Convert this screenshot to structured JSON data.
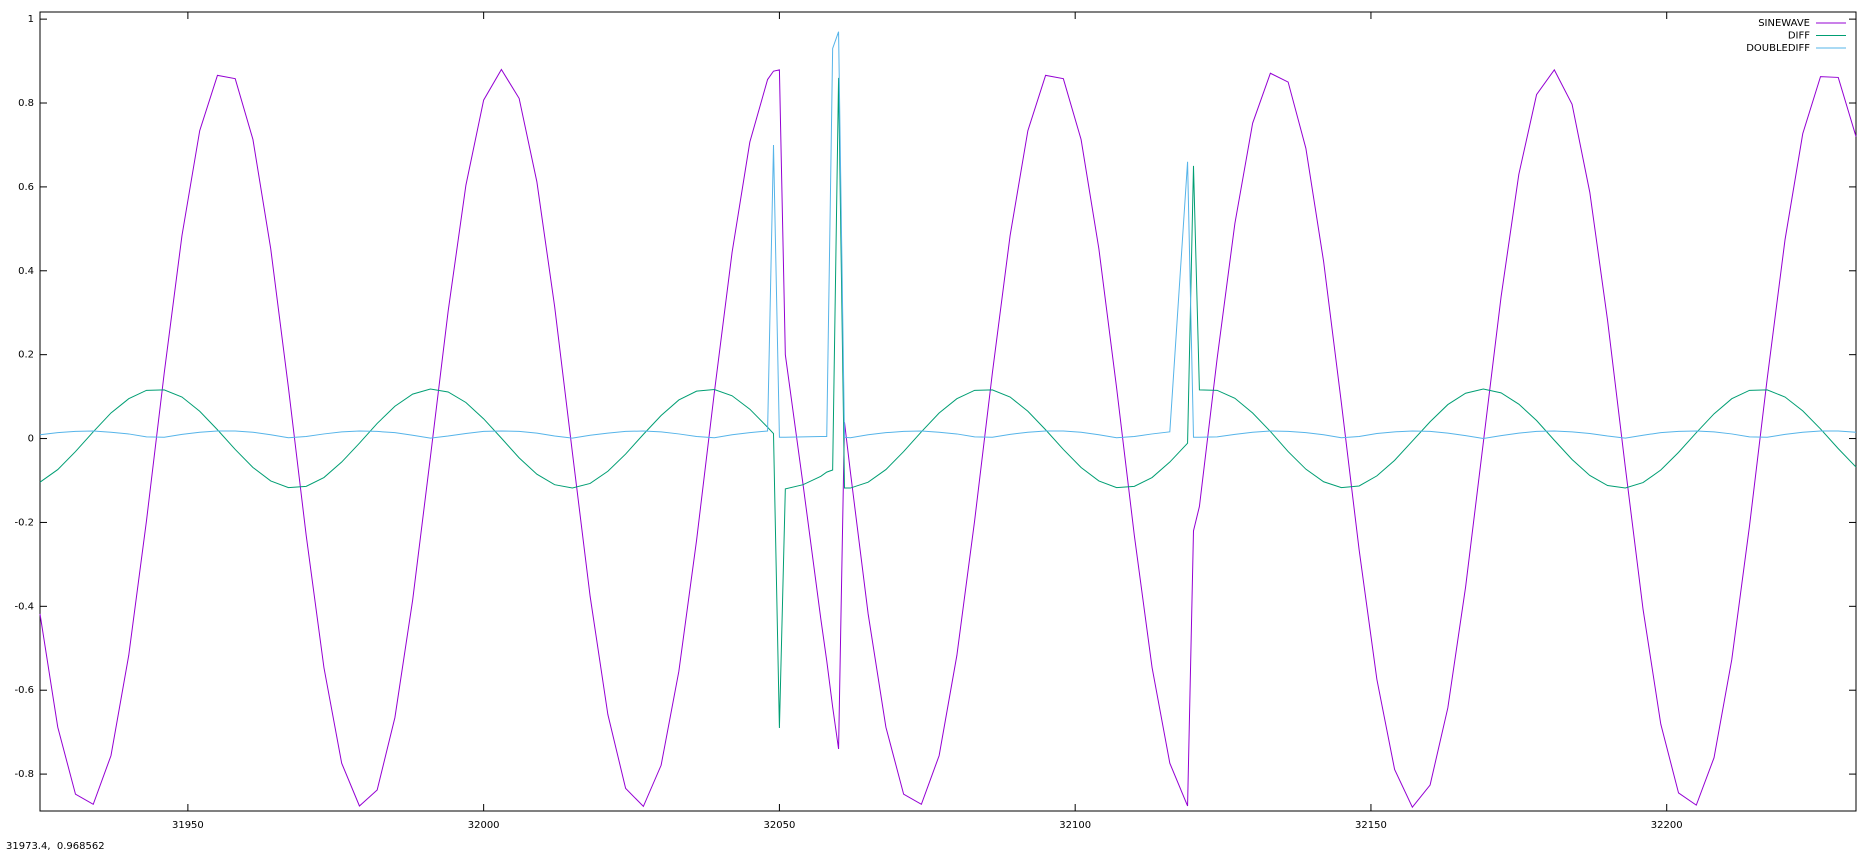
{
  "chart_data": {
    "type": "line",
    "x": [
      31925,
      31928,
      31931,
      31934,
      31937,
      31940,
      31943,
      31946,
      31949,
      31952,
      31955,
      31958,
      31961,
      31964,
      31967,
      31970,
      31973,
      31976,
      31979,
      31982,
      31985,
      31988,
      31991,
      31994,
      31997,
      32000,
      32003,
      32006,
      32009,
      32012,
      32015,
      32018,
      32021,
      32024,
      32027,
      32030,
      32033,
      32036,
      32039,
      32042,
      32045,
      32048,
      32049,
      32050,
      32051,
      32054,
      32057,
      32058,
      32059,
      32060,
      32061,
      32062,
      32065,
      32068,
      32071,
      32074,
      32077,
      32080,
      32083,
      32086,
      32089,
      32092,
      32095,
      32098,
      32101,
      32104,
      32107,
      32110,
      32113,
      32116,
      32119,
      32120,
      32121,
      32124,
      32127,
      32130,
      32133,
      32136,
      32139,
      32142,
      32145,
      32148,
      32151,
      32154,
      32157,
      32160,
      32163,
      32166,
      32169,
      32172,
      32175,
      32178,
      32181,
      32184,
      32187,
      32190,
      32193,
      32196,
      32199,
      32202,
      32205,
      32208,
      32211,
      32214,
      32217,
      32220,
      32223,
      32226,
      32229,
      32232
    ],
    "series": [
      {
        "name": "SINEWAVE",
        "color": "#9400d3",
        "values": [
          -0.418,
          -0.688,
          -0.848,
          -0.872,
          -0.756,
          -0.517,
          -0.196,
          0.156,
          0.484,
          0.734,
          0.866,
          0.858,
          0.713,
          0.453,
          0.121,
          -0.231,
          -0.546,
          -0.774,
          -0.876,
          -0.838,
          -0.665,
          -0.385,
          -0.044,
          0.304,
          0.604,
          0.807,
          0.88,
          0.811,
          0.612,
          0.315,
          -0.033,
          -0.376,
          -0.658,
          -0.834,
          -0.877,
          -0.779,
          -0.555,
          -0.242,
          0.11,
          0.444,
          0.707,
          0.856,
          0.876,
          0.879,
          0.2,
          -0.11,
          -0.43,
          -0.53,
          -0.64,
          -0.74,
          0.039,
          -0.08,
          -0.418,
          -0.688,
          -0.848,
          -0.872,
          -0.756,
          -0.517,
          -0.196,
          0.156,
          0.484,
          0.734,
          0.866,
          0.858,
          0.713,
          0.453,
          0.121,
          -0.231,
          -0.546,
          -0.774,
          -0.876,
          -0.22,
          -0.162,
          0.191,
          0.513,
          0.752,
          0.871,
          0.85,
          0.692,
          0.422,
          0.085,
          -0.265,
          -0.574,
          -0.789,
          -0.879,
          -0.826,
          -0.642,
          -0.354,
          -0.009,
          0.338,
          0.63,
          0.82,
          0.879,
          0.797,
          0.587,
          0.282,
          -0.068,
          -0.407,
          -0.681,
          -0.845,
          -0.874,
          -0.761,
          -0.527,
          -0.208,
          0.144,
          0.474,
          0.727,
          0.863,
          0.861,
          0.72
        ]
      },
      {
        "name": "DIFF",
        "color": "#009e73",
        "values": [
          -0.104,
          -0.074,
          -0.031,
          0.016,
          0.061,
          0.095,
          0.115,
          0.116,
          0.099,
          0.065,
          0.021,
          -0.026,
          -0.069,
          -0.101,
          -0.117,
          -0.114,
          -0.093,
          -0.056,
          -0.011,
          0.036,
          0.077,
          0.106,
          0.118,
          0.111,
          0.086,
          0.047,
          0.001,
          -0.046,
          -0.085,
          -0.11,
          -0.118,
          -0.107,
          -0.078,
          -0.037,
          0.01,
          0.055,
          0.092,
          0.113,
          0.117,
          0.102,
          0.07,
          0.027,
          0.012,
          -0.69,
          -0.12,
          -0.11,
          -0.09,
          -0.08,
          -0.075,
          0.86,
          -0.118,
          -0.118,
          -0.104,
          -0.074,
          -0.031,
          0.016,
          0.061,
          0.095,
          0.115,
          0.116,
          0.099,
          0.065,
          0.021,
          -0.026,
          -0.069,
          -0.101,
          -0.117,
          -0.114,
          -0.093,
          -0.056,
          -0.011,
          0.65,
          0.116,
          0.115,
          0.096,
          0.061,
          0.017,
          -0.031,
          -0.073,
          -0.103,
          -0.117,
          -0.113,
          -0.089,
          -0.052,
          -0.006,
          0.04,
          0.081,
          0.108,
          0.118,
          0.109,
          0.082,
          0.043,
          -0.004,
          -0.05,
          -0.088,
          -0.112,
          -0.118,
          -0.105,
          -0.075,
          -0.033,
          0.014,
          0.059,
          0.095,
          0.115,
          0.116,
          0.099,
          0.066,
          0.023,
          -0.024,
          -0.068
        ]
      },
      {
        "name": "DOUBLEDIFF",
        "color": "#56b4e9",
        "values": [
          0.009,
          0.014,
          0.017,
          0.018,
          0.015,
          0.011,
          0.004,
          0.003,
          0.01,
          0.015,
          0.018,
          0.018,
          0.015,
          0.009,
          0.002,
          0.005,
          0.011,
          0.016,
          0.018,
          0.017,
          0.014,
          0.008,
          0.001,
          0.006,
          0.012,
          0.017,
          0.018,
          0.017,
          0.013,
          0.006,
          0.001,
          0.008,
          0.013,
          0.017,
          0.018,
          0.016,
          0.011,
          0.005,
          0.002,
          0.009,
          0.014,
          0.018,
          0.7,
          0.003,
          0.003,
          0.004,
          0.005,
          0.005,
          0.93,
          0.97,
          0.003,
          0.002,
          0.009,
          0.014,
          0.017,
          0.018,
          0.015,
          0.011,
          0.004,
          0.003,
          0.01,
          0.015,
          0.018,
          0.018,
          0.015,
          0.009,
          0.002,
          0.005,
          0.011,
          0.016,
          0.66,
          0.003,
          0.003,
          0.004,
          0.01,
          0.015,
          0.018,
          0.017,
          0.014,
          0.009,
          0.002,
          0.005,
          0.012,
          0.016,
          0.018,
          0.017,
          0.013,
          0.007,
          0,
          0.007,
          0.013,
          0.017,
          0.018,
          0.016,
          0.012,
          0.006,
          0.001,
          0.008,
          0.014,
          0.017,
          0.018,
          0.016,
          0.011,
          0.004,
          0.003,
          0.01,
          0.015,
          0.018,
          0.018,
          0.015
        ]
      }
    ],
    "xlim": [
      31925,
      32232
    ],
    "xticks": [
      31950,
      32000,
      32050,
      32100,
      32150,
      32200
    ],
    "ylim": [
      -0.888,
      1.017
    ],
    "yticks": [
      -0.8,
      -0.6,
      -0.4,
      -0.2,
      0,
      0.2,
      0.4,
      0.6,
      0.8,
      1
    ],
    "grid": false,
    "legend": "top-right"
  },
  "status_bar": "31973.4,  0.968562"
}
